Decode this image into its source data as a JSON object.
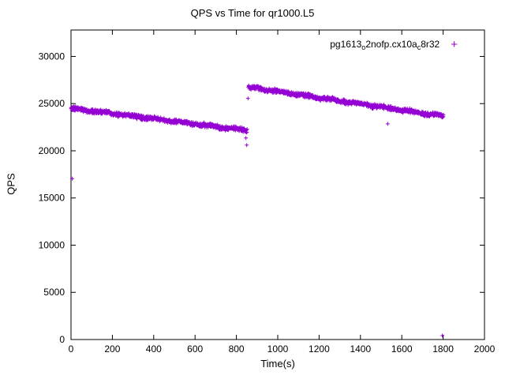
{
  "title": "QPS vs Time for qr1000.L5",
  "legend": {
    "parts": [
      {
        "text": "pg1613",
        "sub": false
      },
      {
        "text": "o",
        "sub": true
      },
      {
        "text": "2nofp.cx10a",
        "sub": false
      },
      {
        "text": "c",
        "sub": true
      },
      {
        "text": "8r32",
        "sub": false
      }
    ],
    "marker": "+"
  },
  "chart_data": {
    "type": "scatter",
    "title": "QPS vs Time for qr1000.L5",
    "xlabel": "Time(s)",
    "ylabel": "QPS",
    "xlim": [
      0,
      2000
    ],
    "ylim": [
      0,
      32800
    ],
    "xticks": [
      0,
      200,
      400,
      600,
      800,
      1000,
      1200,
      1400,
      1600,
      1800,
      2000
    ],
    "yticks": [
      0,
      5000,
      10000,
      15000,
      20000,
      25000,
      30000
    ],
    "series_name": "pg1613_o2nofp.cx10a_c8r32",
    "marker": "plus",
    "color": "#9400D3",
    "grid": false,
    "legend_position": "top-right-inside",
    "segments": [
      {
        "x_start": 0,
        "x_end": 852,
        "y_start": 24500,
        "y_end": 22150,
        "noise": 280,
        "count": 800,
        "note": "dense decreasing band, ~24500 QPS at t=0 down to ~22200 QPS at t=850"
      },
      {
        "x_start": 858,
        "x_end": 1802,
        "y_start": 26750,
        "y_end": 23650,
        "noise": 280,
        "count": 900,
        "note": "dense decreasing band after jump, ~26800 QPS at t=860 down to ~23700 QPS at t=1800"
      }
    ],
    "outliers": [
      {
        "x": 6,
        "y": 17050
      },
      {
        "x": 846,
        "y": 21350
      },
      {
        "x": 850,
        "y": 20600
      },
      {
        "x": 856,
        "y": 25550
      },
      {
        "x": 1532,
        "y": 22850
      },
      {
        "x": 1796,
        "y": 420
      }
    ]
  }
}
